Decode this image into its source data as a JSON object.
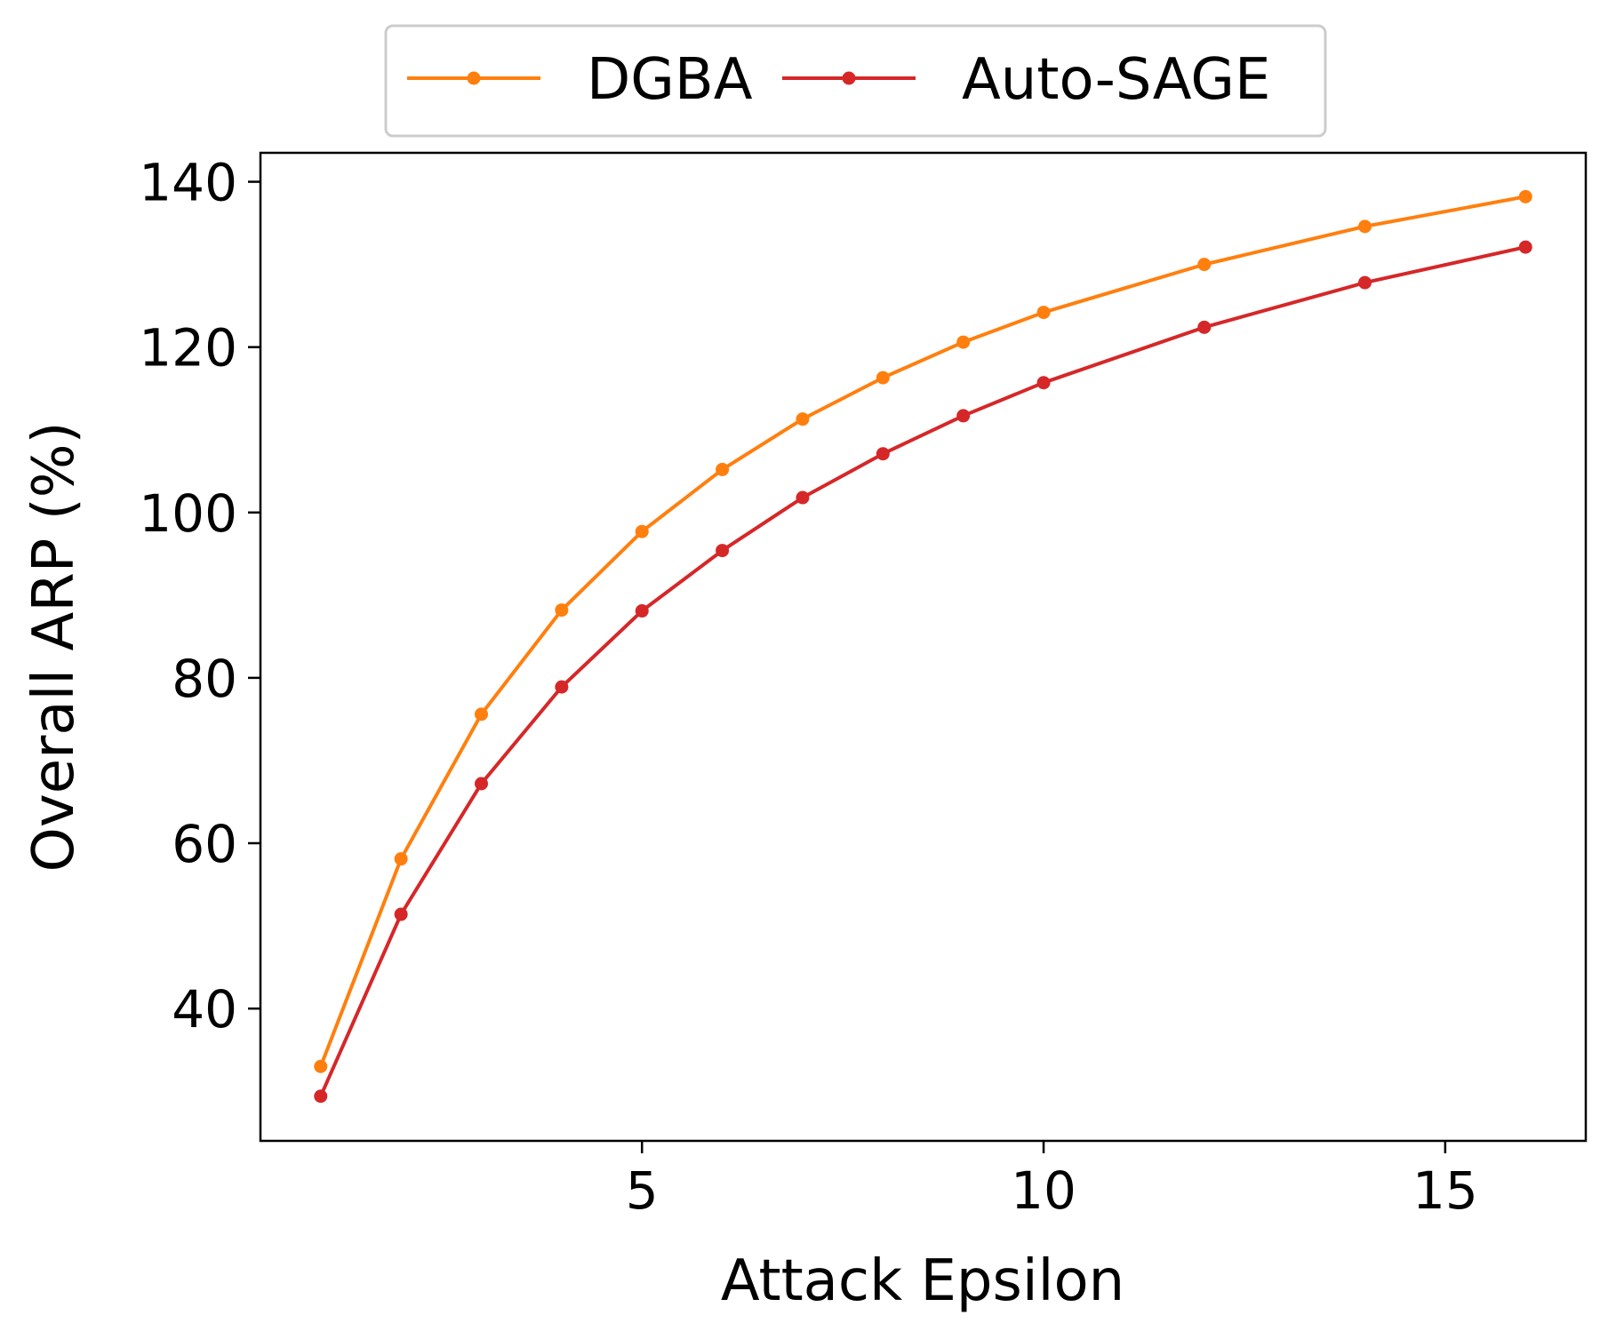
{
  "chart_data": {
    "type": "line",
    "title": "",
    "xlabel": "Attack Epsilon",
    "ylabel": "Overall ARP (%)",
    "xlim": [
      0.25,
      16.75
    ],
    "ylim": [
      24.0,
      143.5
    ],
    "xticks": [
      5,
      10,
      15
    ],
    "yticks": [
      40,
      60,
      80,
      100,
      120,
      140
    ],
    "grid": false,
    "legend_position": "top-center-outside",
    "series": [
      {
        "name": "DGBA",
        "color": "#ff7f0e",
        "x": [
          1,
          2,
          3,
          4,
          5,
          6,
          7,
          8,
          9,
          10,
          12,
          14,
          16
        ],
        "y": [
          33.0,
          58.1,
          75.6,
          88.2,
          97.7,
          105.2,
          111.3,
          116.3,
          120.6,
          124.2,
          130.0,
          134.6,
          138.2
        ]
      },
      {
        "name": "Auto-SAGE",
        "color": "#d62728",
        "x": [
          1,
          2,
          3,
          4,
          5,
          6,
          7,
          8,
          9,
          10,
          12,
          14,
          16
        ],
        "y": [
          29.4,
          51.4,
          67.2,
          78.9,
          88.1,
          95.4,
          101.8,
          107.1,
          111.7,
          115.7,
          122.4,
          127.8,
          132.1
        ]
      }
    ]
  }
}
